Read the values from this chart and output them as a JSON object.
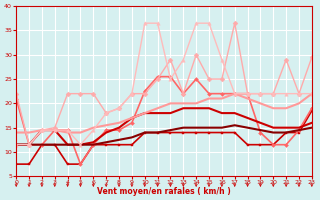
{
  "xlabel": "Vent moyen/en rafales ( km/h )",
  "background_color": "#d6f0f0",
  "grid_color": "#ffffff",
  "xlim": [
    0,
    23
  ],
  "ylim": [
    5,
    40
  ],
  "yticks": [
    5,
    10,
    15,
    20,
    25,
    30,
    35,
    40
  ],
  "xticks": [
    0,
    1,
    2,
    3,
    4,
    5,
    6,
    7,
    8,
    9,
    10,
    11,
    12,
    13,
    14,
    15,
    16,
    17,
    18,
    19,
    20,
    21,
    22,
    23
  ],
  "lines": [
    {
      "x": [
        0,
        1,
        2,
        3,
        4,
        5,
        6,
        7,
        8,
        9,
        10,
        11,
        12,
        13,
        14,
        15,
        16,
        17,
        18,
        19,
        20,
        21,
        22,
        23
      ],
      "y": [
        7.5,
        7.5,
        11.5,
        11.5,
        7.5,
        7.5,
        11.5,
        11.5,
        11.5,
        11.5,
        14,
        14,
        14,
        14,
        14,
        14,
        14,
        14,
        11.5,
        11.5,
        11.5,
        14,
        14,
        18.5
      ],
      "color": "#cc0000",
      "lw": 1.2,
      "marker": "s",
      "ms": 2.0
    },
    {
      "x": [
        0,
        1,
        2,
        3,
        4,
        5,
        6,
        7,
        8,
        9,
        10,
        11,
        12,
        13,
        14,
        15,
        16,
        17,
        18,
        19,
        20,
        21,
        22,
        23
      ],
      "y": [
        21,
        11.5,
        11.5,
        14.5,
        14.5,
        7.5,
        11.5,
        14.5,
        14.5,
        16,
        22.5,
        25.5,
        25.5,
        22,
        25,
        22,
        22,
        22,
        22,
        14,
        11.5,
        11.5,
        14.5,
        19
      ],
      "color": "#ff6666",
      "lw": 1.2,
      "marker": "D",
      "ms": 2.0
    },
    {
      "x": [
        0,
        1,
        2,
        3,
        4,
        5,
        6,
        7,
        8,
        9,
        10,
        11,
        12,
        13,
        14,
        15,
        16,
        17,
        18,
        19,
        20,
        21,
        22,
        23
      ],
      "y": [
        11.5,
        11.5,
        14.5,
        14.5,
        11.5,
        11.5,
        12,
        14,
        15,
        17,
        18,
        18,
        18,
        19,
        19,
        19,
        18,
        18,
        17,
        16,
        15,
        15,
        15,
        16
      ],
      "color": "#cc0000",
      "lw": 1.5,
      "marker": null,
      "ms": 0
    },
    {
      "x": [
        0,
        1,
        2,
        3,
        4,
        5,
        6,
        7,
        8,
        9,
        10,
        11,
        12,
        13,
        14,
        15,
        16,
        17,
        18,
        19,
        20,
        21,
        22,
        23
      ],
      "y": [
        14,
        14,
        14.5,
        14.5,
        14,
        14,
        15,
        15.5,
        16,
        17,
        18,
        19,
        20,
        20,
        20,
        21,
        21,
        22,
        21,
        20,
        19,
        19,
        20,
        22
      ],
      "color": "#ff9999",
      "lw": 1.5,
      "marker": null,
      "ms": 0
    },
    {
      "x": [
        0,
        1,
        2,
        3,
        4,
        5,
        6,
        7,
        8,
        9,
        10,
        11,
        12,
        13,
        14,
        15,
        16,
        17,
        18,
        19,
        20,
        21,
        22,
        23
      ],
      "y": [
        11.5,
        11.5,
        11.5,
        11.5,
        11.5,
        11.5,
        11.5,
        12,
        12.5,
        13,
        14,
        14,
        14.5,
        15,
        15,
        15,
        15,
        15.5,
        15,
        14.5,
        14,
        14,
        14.5,
        15
      ],
      "color": "#880000",
      "lw": 1.5,
      "marker": null,
      "ms": 0
    },
    {
      "x": [
        0,
        1,
        2,
        3,
        4,
        5,
        6,
        7,
        8,
        9,
        10,
        11,
        12,
        13,
        14,
        15,
        16,
        17,
        18,
        19,
        20,
        21,
        22,
        23
      ],
      "y": [
        22,
        11.5,
        14.5,
        15,
        22,
        22,
        22,
        18,
        19,
        22,
        22,
        25,
        29,
        22,
        30,
        25,
        25,
        36.5,
        22,
        22,
        22,
        29,
        22,
        29.5
      ],
      "color": "#ffaaaa",
      "lw": 1.0,
      "marker": "D",
      "ms": 2.5
    },
    {
      "x": [
        0,
        1,
        2,
        3,
        4,
        5,
        6,
        7,
        8,
        9,
        10,
        11,
        12,
        13,
        14,
        15,
        16,
        17,
        18,
        19,
        20,
        21,
        22,
        23
      ],
      "y": [
        11.5,
        11.5,
        14.5,
        14.5,
        14.5,
        11.5,
        14.5,
        18,
        19,
        22,
        36.5,
        36.5,
        25,
        29,
        36.5,
        36.5,
        29,
        22,
        22,
        22,
        22,
        22,
        22,
        22
      ],
      "color": "#ffbbbb",
      "lw": 1.0,
      "marker": "^",
      "ms": 2.5
    }
  ],
  "arrow_color": "#cc0000"
}
